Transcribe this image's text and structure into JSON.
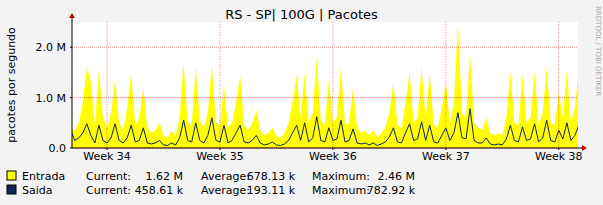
{
  "chart_data": {
    "type": "area",
    "title": "RS - SP| 100G | Pacotes",
    "y_label": "pacotes por segundo",
    "watermark": "RRDTOOL / TOBI OETIKER",
    "x": [
      -2.25,
      -2,
      -1.75,
      -1.5,
      -1.25,
      -1,
      -0.75,
      -0.5,
      -0.25,
      0,
      0.25,
      0.5,
      0.75,
      1,
      1.25,
      1.5,
      1.75,
      2,
      2.25,
      2.5,
      2.75,
      3,
      3.25,
      3.5,
      3.75,
      4,
      4.25,
      4.5,
      4.75,
      5,
      5.25,
      5.5,
      5.75,
      6,
      6.25,
      6.5,
      6.75,
      7,
      7.25,
      7.5,
      7.75,
      8,
      8.25,
      8.5,
      8.75,
      9,
      9.25,
      9.5,
      9.75,
      10,
      10.25,
      10.5,
      10.75,
      11,
      11.25,
      11.5,
      11.75,
      12,
      12.25,
      12.5,
      12.75,
      13,
      13.25,
      13.5,
      13.75,
      14,
      14.25,
      14.5,
      14.75,
      15,
      15.25,
      15.5,
      15.75,
      16,
      16.25,
      16.5,
      16.75,
      17,
      17.25,
      17.5,
      17.75,
      18,
      18.25,
      18.5,
      18.75,
      19,
      19.25,
      19.5,
      19.75,
      20,
      20.25,
      20.5,
      20.75,
      21,
      21.25,
      21.5,
      21.75,
      22,
      22.25,
      22.5,
      22.75,
      23,
      23.25,
      23.5,
      23.75,
      24,
      24.25,
      24.5,
      24.75,
      25,
      25.25,
      25.5,
      25.75,
      26,
      26.25,
      26.5,
      26.75,
      27,
      27.25,
      27.5,
      27.75,
      28,
      28.25,
      28.5,
      28.75,
      29,
      29.25
    ],
    "series": [
      {
        "name": "Entrada",
        "color": "#ffff00",
        "type": "area",
        "stats": [
          {
            "label": "Current:",
            "value": "1.62 M"
          },
          {
            "label": "Average:",
            "value": "678.13 k"
          },
          {
            "label": "Maximum:",
            "value": "2.46 M"
          }
        ],
        "values": [
          400000,
          350000,
          500000,
          900000,
          1600000,
          1300000,
          450000,
          1550000,
          600000,
          400000,
          700000,
          1350000,
          500000,
          350000,
          800000,
          1500000,
          450000,
          600000,
          1200000,
          400000,
          300000,
          350000,
          500000,
          250000,
          200000,
          350000,
          250000,
          600000,
          1700000,
          500000,
          450000,
          1600000,
          550000,
          400000,
          700000,
          1650000,
          500000,
          450000,
          1250000,
          400000,
          500000,
          900000,
          1450000,
          450000,
          350000,
          500000,
          750000,
          350000,
          250000,
          300000,
          400000,
          250000,
          200000,
          300000,
          500000,
          900000,
          1450000,
          600000,
          1500000,
          500000,
          700000,
          1800000,
          550000,
          450000,
          1350000,
          500000,
          600000,
          1600000,
          450000,
          500000,
          1200000,
          400000,
          300000,
          350000,
          250000,
          350000,
          200000,
          300000,
          400000,
          700000,
          1300000,
          450000,
          400000,
          900000,
          1500000,
          500000,
          600000,
          1600000,
          550000,
          1500000,
          450000,
          400000,
          800000,
          1300000,
          500000,
          900000,
          2460000,
          700000,
          600000,
          1850000,
          500000,
          400000,
          350000,
          600000,
          300000,
          250000,
          300000,
          250000,
          600000,
          1500000,
          500000,
          450000,
          1450000,
          500000,
          600000,
          1500000,
          450000,
          700000,
          1600000,
          500000,
          450000,
          1100000,
          600000,
          1550000,
          500000,
          800000,
          1620000
        ]
      },
      {
        "name": "Saida",
        "color": "#0f2557",
        "type": "line",
        "stats": [
          {
            "label": "Current:",
            "value": "458.61 k"
          },
          {
            "label": "Average:",
            "value": "193.11 k"
          },
          {
            "label": "Maximum:",
            "value": "782.92 k"
          }
        ],
        "values": [
          350000,
          150000,
          200000,
          300000,
          480000,
          250000,
          100000,
          450000,
          150000,
          100000,
          200000,
          480000,
          150000,
          100000,
          200000,
          450000,
          120000,
          150000,
          400000,
          100000,
          80000,
          100000,
          150000,
          60000,
          50000,
          100000,
          60000,
          200000,
          550000,
          150000,
          120000,
          500000,
          150000,
          100000,
          250000,
          600000,
          150000,
          120000,
          450000,
          100000,
          150000,
          300000,
          450000,
          120000,
          100000,
          150000,
          250000,
          100000,
          60000,
          80000,
          120000,
          60000,
          50000,
          80000,
          150000,
          300000,
          450000,
          150000,
          500000,
          120000,
          200000,
          620000,
          150000,
          120000,
          400000,
          150000,
          180000,
          550000,
          120000,
          150000,
          380000,
          100000,
          80000,
          100000,
          60000,
          100000,
          50000,
          80000,
          120000,
          220000,
          400000,
          120000,
          100000,
          300000,
          480000,
          150000,
          180000,
          520000,
          150000,
          450000,
          120000,
          100000,
          250000,
          400000,
          150000,
          300000,
          700000,
          200000,
          180000,
          782920,
          150000,
          100000,
          100000,
          200000,
          80000,
          60000,
          80000,
          60000,
          180000,
          450000,
          150000,
          120000,
          420000,
          150000,
          180000,
          480000,
          120000,
          200000,
          550000,
          150000,
          120000,
          350000,
          180000,
          500000,
          150000,
          250000,
          458610
        ]
      }
    ],
    "xlim": [
      -2.17,
      29.19
    ],
    "xticks": [
      {
        "value": 0,
        "label": "Week 34"
      },
      {
        "value": 7,
        "label": "Week 35"
      },
      {
        "value": 14,
        "label": "Week 36"
      },
      {
        "value": 21,
        "label": "Week 37"
      },
      {
        "value": 28,
        "label": "Week 38"
      }
    ],
    "ylim": [
      0,
      2500000
    ],
    "yticks": [
      {
        "value": 0,
        "label": "0.0"
      },
      {
        "value": 1000000,
        "label": "1.0 M"
      },
      {
        "value": 2000000,
        "label": "2.0 M"
      }
    ],
    "grid": true,
    "legend": "bottom-left"
  }
}
